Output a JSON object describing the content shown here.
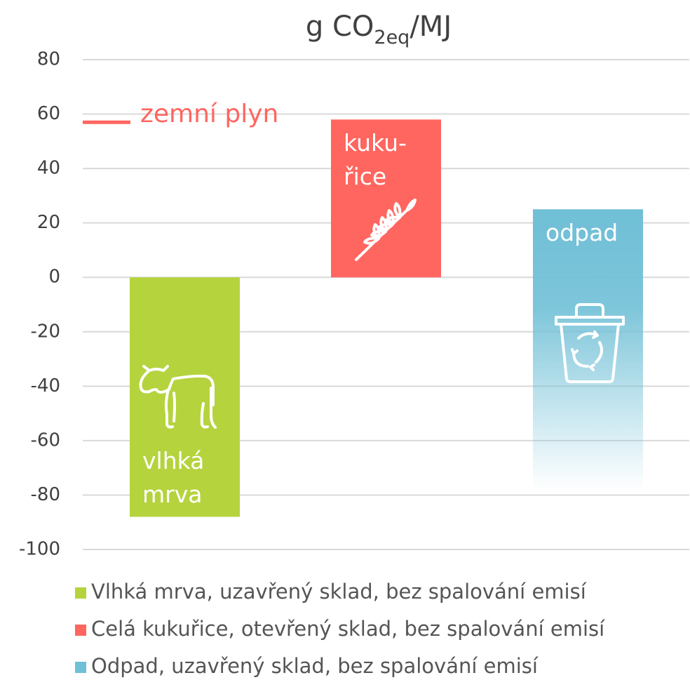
{
  "chart_data": {
    "type": "bar",
    "title": [
      "g CO",
      "2eq",
      "/MJ"
    ],
    "ylim": [
      -100,
      80
    ],
    "yticks": [
      -100,
      -80,
      -60,
      -40,
      -20,
      0,
      20,
      40,
      60,
      80
    ],
    "grid": true,
    "series": [
      {
        "name": "Vlhká mrva, uzavřený sklad, bez spalování emisí",
        "color": "#b5d33d",
        "values": [
          -88
        ],
        "label": [
          "vlhká",
          "mrva"
        ]
      },
      {
        "name": "Celá kukuřice, otevřený sklad, bez spalování emisí",
        "color": "#ff6660",
        "values": [
          58
        ],
        "label": [
          "kuku-",
          "řice"
        ]
      },
      {
        "name": "Odpad, uzavřený sklad, bez spalování emisí",
        "color": "#6fbfd6",
        "values": [
          25
        ],
        "label": [
          "odpad"
        ],
        "gradient_end": -78
      }
    ],
    "reference": {
      "label": "zemní plyn",
      "value": 57,
      "color": "#ff6660"
    }
  }
}
